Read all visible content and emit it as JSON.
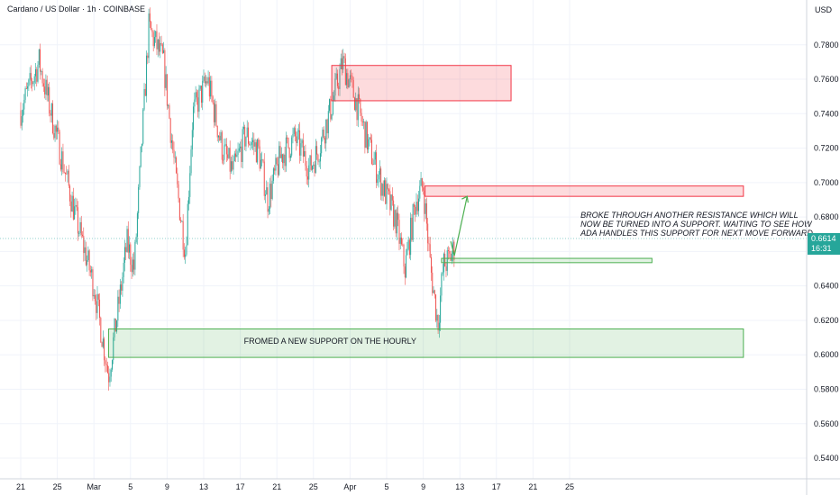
{
  "header": {
    "title": "Cardano / US Dollar · 1h · COINBASE",
    "unit": "USD"
  },
  "price_tag": {
    "price": "0.6614",
    "countdown": "16:31",
    "color": "#26a69a"
  },
  "colors": {
    "up": "#26a69a",
    "down": "#ef5350",
    "resistance": "#f23645",
    "support": "#4caf50",
    "arrow": "#4caf50"
  },
  "chart_data": {
    "type": "candlestick",
    "y_axis": {
      "side": "right",
      "ylim": [
        0.528,
        0.806
      ],
      "ticks": [
        "0.7800",
        "0.7600",
        "0.7400",
        "0.7200",
        "0.7000",
        "0.6800",
        "0.6600",
        "0.6400",
        "0.6200",
        "0.6000",
        "0.5800",
        "0.5600",
        "0.5400"
      ]
    },
    "x_axis": {
      "ticks": [
        "21",
        "25",
        "Mar",
        "5",
        "9",
        "13",
        "17",
        "21",
        "25",
        "Apr",
        "5",
        "9",
        "13",
        "17",
        "21",
        "25"
      ]
    },
    "price_path": [
      {
        "x": 0,
        "y": 0.742
      },
      {
        "x": 1,
        "y": 0.77
      },
      {
        "x": 2,
        "y": 0.725
      },
      {
        "x": 3,
        "y": 0.68
      },
      {
        "x": 4,
        "y": 0.64
      },
      {
        "x": 4.8,
        "y": 0.588
      },
      {
        "x": 5.5,
        "y": 0.64
      },
      {
        "x": 5.8,
        "y": 0.665
      },
      {
        "x": 6.2,
        "y": 0.65
      },
      {
        "x": 7.0,
        "y": 0.79
      },
      {
        "x": 7.8,
        "y": 0.77
      },
      {
        "x": 8.5,
        "y": 0.7
      },
      {
        "x": 9.0,
        "y": 0.66
      },
      {
        "x": 9.4,
        "y": 0.74
      },
      {
        "x": 10.2,
        "y": 0.76
      },
      {
        "x": 11.0,
        "y": 0.72
      },
      {
        "x": 11.6,
        "y": 0.706
      },
      {
        "x": 12.3,
        "y": 0.728
      },
      {
        "x": 13.0,
        "y": 0.718
      },
      {
        "x": 13.5,
        "y": 0.69
      },
      {
        "x": 14.2,
        "y": 0.715
      },
      {
        "x": 15.0,
        "y": 0.726
      },
      {
        "x": 15.8,
        "y": 0.708
      },
      {
        "x": 16.3,
        "y": 0.72
      },
      {
        "x": 17.0,
        "y": 0.745
      },
      {
        "x": 17.6,
        "y": 0.77
      },
      {
        "x": 18.3,
        "y": 0.748
      },
      {
        "x": 19.0,
        "y": 0.722
      },
      {
        "x": 19.7,
        "y": 0.7
      },
      {
        "x": 20.5,
        "y": 0.678
      },
      {
        "x": 21.0,
        "y": 0.65
      },
      {
        "x": 21.6,
        "y": 0.69
      },
      {
        "x": 22.0,
        "y": 0.698
      },
      {
        "x": 22.4,
        "y": 0.65
      },
      {
        "x": 22.8,
        "y": 0.618
      },
      {
        "x": 23.1,
        "y": 0.652
      },
      {
        "x": 23.4,
        "y": 0.655
      },
      {
        "x": 23.7,
        "y": 0.662
      }
    ],
    "zones": [
      {
        "kind": "resistance",
        "x0": 17,
        "x1": 26.8,
        "y_low": 0.7475,
        "y_high": 0.768
      },
      {
        "kind": "resistance",
        "x0": 22.1,
        "x1": 39.5,
        "y_low": 0.692,
        "y_high": 0.698
      },
      {
        "kind": "support",
        "x0": 23.0,
        "x1": 34.5,
        "y_low": 0.6535,
        "y_high": 0.656
      },
      {
        "kind": "support",
        "x0": 4.8,
        "x1": 39.5,
        "y_low": 0.5985,
        "y_high": 0.615
      }
    ],
    "arrow": [
      {
        "x": 23.7,
        "y": 0.6575
      },
      {
        "x": 24.4,
        "y": 0.692
      }
    ],
    "annotations": [
      {
        "lines": [
          "BROKE THROUGH ANOTHER RESISTANCE WHICH WILL",
          "NOW BE TURNED INTO A SUPPORT. WAITING TO SEE HOW",
          "ADA HANDLES THIS SUPPORT FOR NEXT MOVE FORWARD."
        ],
        "x": 30.6,
        "y": 0.6795,
        "italic": true
      },
      {
        "lines": [
          "FROMED A NEW SUPPORT ON THE HOURLY"
        ],
        "x": 12.2,
        "y": 0.6065,
        "italic": false
      }
    ]
  }
}
